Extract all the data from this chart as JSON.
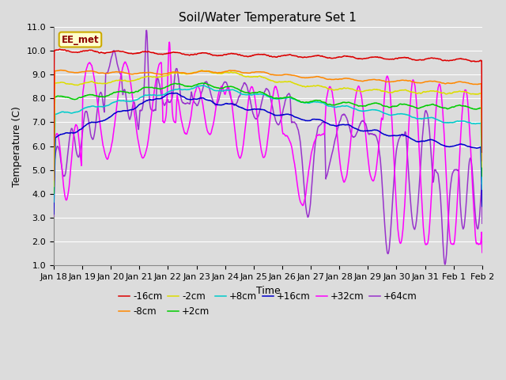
{
  "title": "Soil/Water Temperature Set 1",
  "xlabel": "Time",
  "ylabel": "Temperature (C)",
  "ylim": [
    1.0,
    11.0
  ],
  "yticks": [
    1.0,
    2.0,
    3.0,
    4.0,
    5.0,
    6.0,
    7.0,
    8.0,
    9.0,
    10.0,
    11.0
  ],
  "plot_bg": "#dcdcdc",
  "fig_bg": "#dcdcdc",
  "grid_color": "#ffffff",
  "annotation_text": "EE_met",
  "annotation_bg": "#ffffcc",
  "annotation_border": "#ccaa00",
  "series_colors": {
    "-16cm": "#dd0000",
    "-8cm": "#ff8800",
    "-2cm": "#dddd00",
    "+2cm": "#00cc00",
    "+8cm": "#00cccc",
    "+16cm": "#0000cc",
    "+32cm": "#ff00ff",
    "+64cm": "#9933cc"
  },
  "x_tick_labels": [
    "Jan 18",
    "Jan 19",
    "Jan 20",
    "Jan 21",
    "Jan 22",
    "Jan 23",
    "Jan 24",
    "Jan 25",
    "Jan 26",
    "Jan 27",
    "Jan 28",
    "Jan 29",
    "Jan 30",
    "Jan 31",
    "Feb 1",
    "Feb 2"
  ],
  "title_fontsize": 11,
  "label_fontsize": 9,
  "tick_fontsize": 8,
  "legend_fontsize": 8.5
}
